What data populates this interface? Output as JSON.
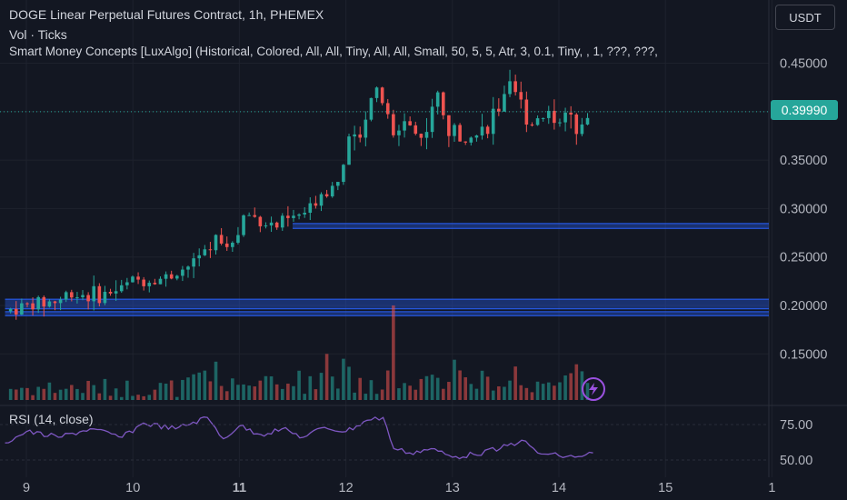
{
  "header": {
    "title": "DOGE Linear Perpetual Futures Contract, 1h, PHEMEX",
    "volume_label": "Vol · Ticks",
    "indicator_label": "Smart Money Concepts [LuxAlgo] (Historical, Colored, All, All, Tiny, All, All, Small, 50, 5, 5, Atr, 3, 0.1, Tiny, , 1, ???, ???,",
    "currency": "USDT"
  },
  "last_price": "0.39990",
  "colors": {
    "up": "#26a69a",
    "down": "#ef5350",
    "rsi": "#7e57c2",
    "zone": "#2962ff",
    "background": "#131722"
  },
  "icons": {
    "replay": "lightning-bolt-icon"
  },
  "rsi_panel": {
    "label": "RSI (14, close)"
  },
  "chart_data": [
    {
      "type": "candlestick",
      "title": "DOGE Linear Perpetual Futures Contract, 1h, PHEMEX",
      "ylim": [
        0.1,
        0.46
      ],
      "y_ticks": [
        "0.45000",
        "0.40000",
        "0.35000",
        "0.30000",
        "0.25000",
        "0.20000",
        "0.15000"
      ],
      "x_ticks": [
        "9",
        "10",
        "11",
        "12",
        "13",
        "14",
        "15",
        "1"
      ],
      "x_tick_bold": [
        "11"
      ],
      "timeframe": "1h",
      "date_ticks": [
        {
          "label": "9",
          "day": 9
        },
        {
          "label": "10",
          "day": 10
        },
        {
          "label": "11",
          "day": 11
        },
        {
          "label": "12",
          "day": 12
        },
        {
          "label": "13",
          "day": 13
        },
        {
          "label": "14",
          "day": 14
        },
        {
          "label": "15",
          "day": 15
        },
        {
          "label": "1",
          "day": 16
        }
      ],
      "last_price": 0.3999,
      "support_zones": [
        {
          "from_day": 8.8,
          "to_day": 16.0,
          "top": 0.2065,
          "bottom": 0.1965
        },
        {
          "from_day": 8.8,
          "to_day": 16.0,
          "top": 0.1935,
          "bottom": 0.1895
        },
        {
          "from_day": 11.5,
          "to_day": 16.0,
          "top": 0.2845,
          "bottom": 0.2795
        }
      ],
      "close_path": [
        [
          8.8,
          0.194
        ],
        [
          9.0,
          0.2
        ],
        [
          9.3,
          0.205
        ],
        [
          9.4,
          0.213
        ],
        [
          9.7,
          0.21
        ],
        [
          9.9,
          0.218
        ],
        [
          10.0,
          0.226
        ],
        [
          10.3,
          0.228
        ],
        [
          10.5,
          0.24
        ],
        [
          10.7,
          0.254
        ],
        [
          10.8,
          0.272
        ],
        [
          10.95,
          0.262
        ],
        [
          11.05,
          0.295
        ],
        [
          11.2,
          0.288
        ],
        [
          11.35,
          0.282
        ],
        [
          11.5,
          0.29
        ],
        [
          11.65,
          0.297
        ],
        [
          11.75,
          0.315
        ],
        [
          11.9,
          0.325
        ],
        [
          12.0,
          0.36
        ],
        [
          12.1,
          0.372
        ],
        [
          12.25,
          0.42
        ],
        [
          12.35,
          0.41
        ],
        [
          12.45,
          0.37
        ],
        [
          12.55,
          0.395
        ],
        [
          12.7,
          0.37
        ],
        [
          12.85,
          0.42
        ],
        [
          12.95,
          0.38
        ],
        [
          13.1,
          0.38
        ],
        [
          13.25,
          0.375
        ],
        [
          13.4,
          0.4
        ],
        [
          13.55,
          0.42
        ],
        [
          13.65,
          0.405
        ],
        [
          13.75,
          0.39
        ],
        [
          13.9,
          0.4
        ],
        [
          14.05,
          0.39
        ],
        [
          14.2,
          0.392
        ],
        [
          14.32,
          0.3999
        ]
      ],
      "volume_spikes": [
        {
          "day": 10.8,
          "value": 0.142
        },
        {
          "day": 11.8,
          "value": 0.15
        },
        {
          "day": 12.0,
          "value": 0.145
        },
        {
          "day": 12.42,
          "value": 0.2
        },
        {
          "day": 13.02,
          "value": 0.144
        },
        {
          "day": 13.6,
          "value": 0.137
        }
      ]
    },
    {
      "type": "line",
      "title": "RSI (14, close)",
      "ylim": [
        45,
        85
      ],
      "y_ticks": [
        "75.00",
        "50.00"
      ],
      "series": [
        {
          "x": [
            8.8,
            9.0,
            9.3,
            9.6,
            9.9,
            10.1,
            10.4,
            10.7,
            10.85,
            11.0,
            11.2,
            11.4,
            11.6,
            11.8,
            12.0,
            12.2,
            12.35,
            12.45,
            12.6,
            12.8,
            13.0,
            13.2,
            13.45,
            13.65,
            13.8,
            14.0,
            14.15,
            14.32
          ],
          "values": [
            62,
            70,
            66,
            72,
            66,
            76,
            72,
            80,
            65,
            74,
            68,
            72,
            66,
            73,
            70,
            78,
            80,
            58,
            55,
            58,
            52,
            54,
            58,
            64,
            55,
            53,
            52,
            55
          ]
        }
      ]
    }
  ]
}
